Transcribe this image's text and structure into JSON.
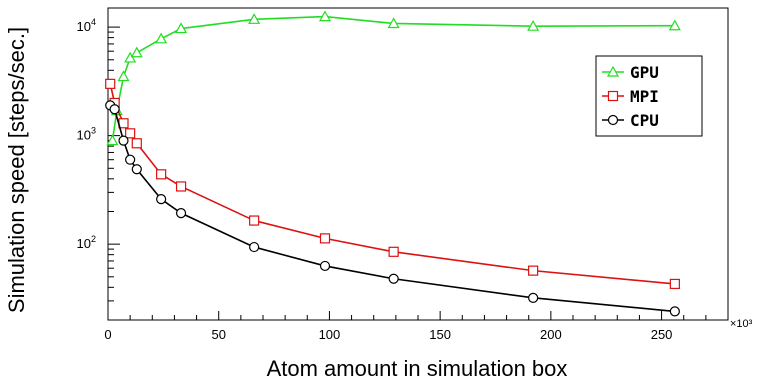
{
  "chart_data": {
    "type": "line",
    "xlabel": "Atom amount in simulation box",
    "ylabel": "Simulation speed [steps/sec.]",
    "x_multiplier_label": "×10³",
    "xlim": [
      0,
      280
    ],
    "ylim": [
      20,
      15000
    ],
    "yscale": "log",
    "x_ticks": [
      0,
      50,
      100,
      150,
      200,
      250
    ],
    "y_ticks": [
      {
        "value": 100,
        "base": "10",
        "exp": "2"
      },
      {
        "value": 1000,
        "base": "10",
        "exp": "3"
      },
      {
        "value": 10000,
        "base": "10",
        "exp": "4"
      }
    ],
    "grid": false,
    "legend_position": "top-right",
    "series": [
      {
        "name": "GPU",
        "color": "#22dd22",
        "marker": "triangle",
        "points": [
          [
            2,
            900
          ],
          [
            4,
            1700
          ],
          [
            7,
            3500
          ],
          [
            10,
            5200
          ],
          [
            13,
            5800
          ],
          [
            24,
            7800
          ],
          [
            33,
            9700
          ],
          [
            66,
            11800
          ],
          [
            98,
            12500
          ],
          [
            129,
            10800
          ],
          [
            192,
            10200
          ],
          [
            256,
            10300
          ]
        ]
      },
      {
        "name": "MPI",
        "color": "#dd1111",
        "marker": "square",
        "points": [
          [
            1,
            3000
          ],
          [
            3,
            2000
          ],
          [
            7,
            1300
          ],
          [
            10,
            1050
          ],
          [
            13,
            850
          ],
          [
            24,
            440
          ],
          [
            33,
            340
          ],
          [
            66,
            165
          ],
          [
            98,
            113
          ],
          [
            129,
            85
          ],
          [
            192,
            57
          ],
          [
            256,
            43
          ]
        ]
      },
      {
        "name": "CPU",
        "color": "#000000",
        "marker": "circle",
        "points": [
          [
            1,
            1900
          ],
          [
            3,
            1750
          ],
          [
            7,
            900
          ],
          [
            10,
            600
          ],
          [
            13,
            490
          ],
          [
            24,
            260
          ],
          [
            33,
            193
          ],
          [
            66,
            94
          ],
          [
            98,
            63
          ],
          [
            129,
            48
          ],
          [
            192,
            32
          ],
          [
            256,
            24
          ]
        ]
      }
    ]
  }
}
